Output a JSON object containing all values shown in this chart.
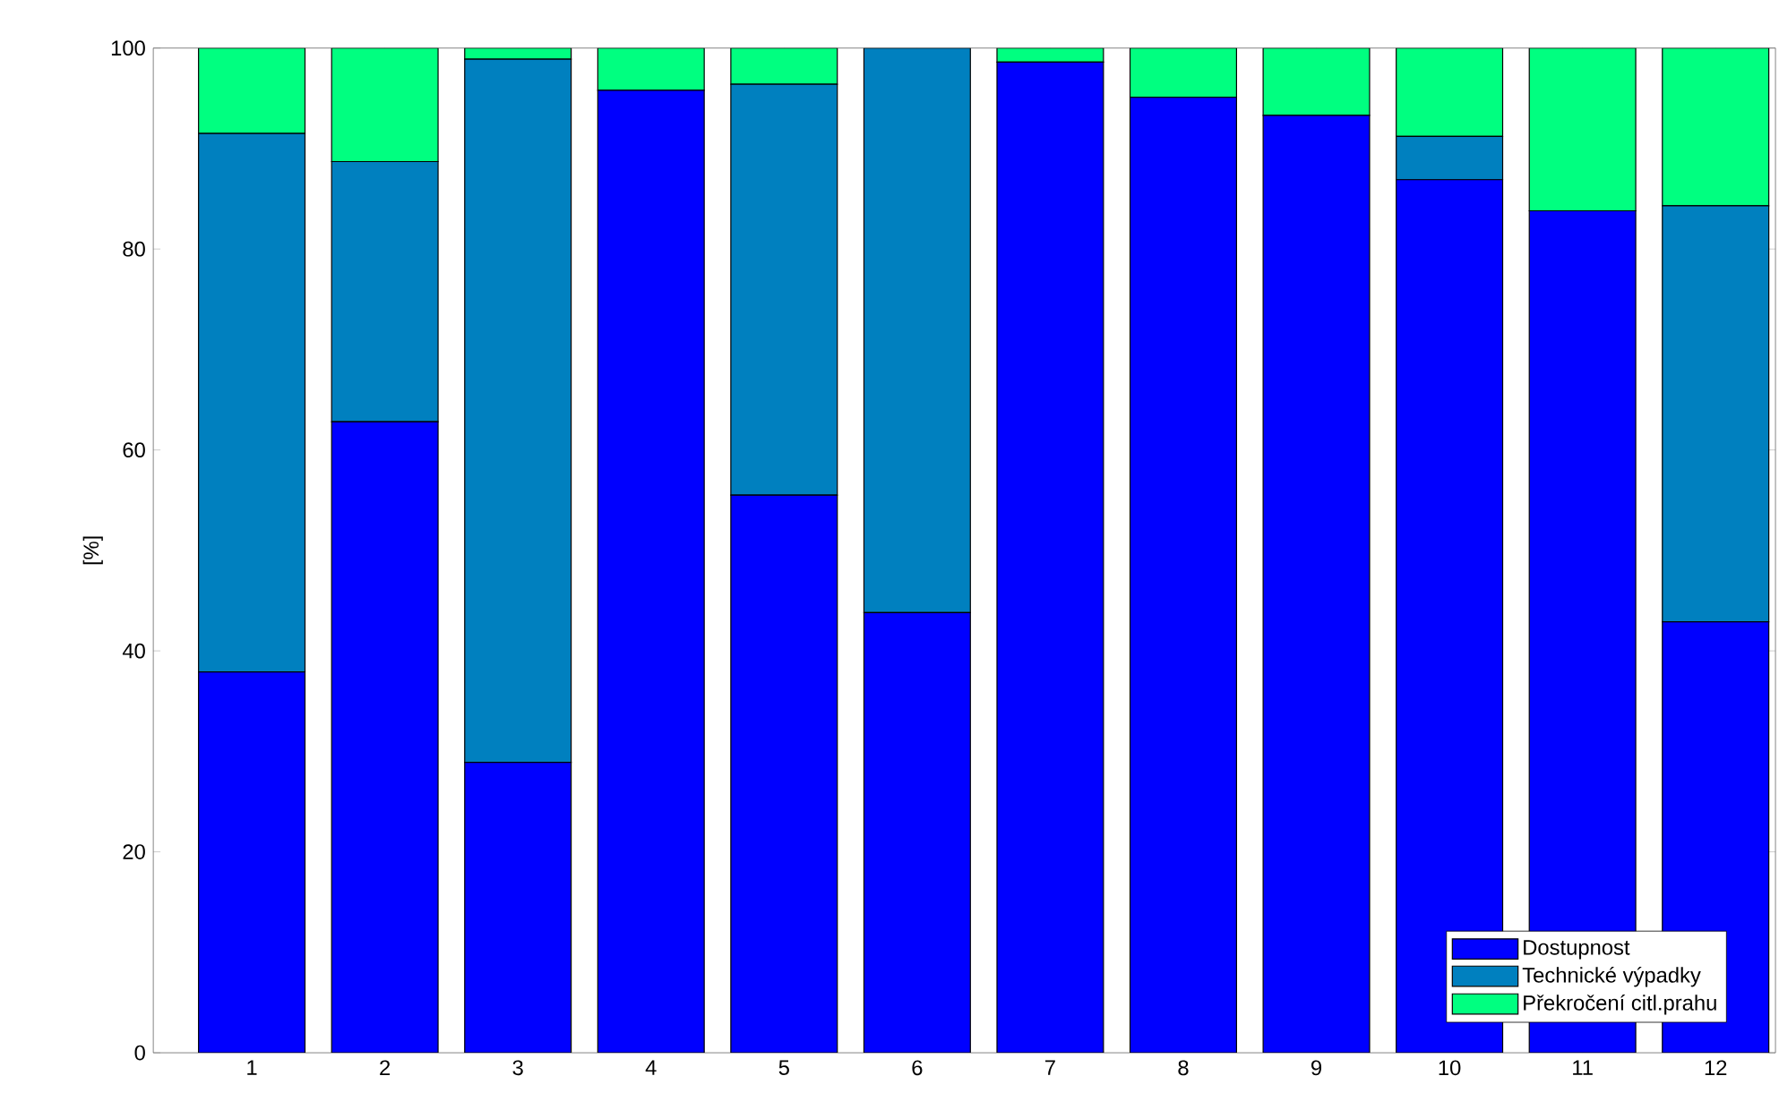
{
  "chart_data": {
    "type": "bar",
    "stacked": true,
    "ylabel": "[%]",
    "categories": [
      "1",
      "2",
      "3",
      "4",
      "5",
      "6",
      "7",
      "8",
      "9",
      "10",
      "11",
      "12"
    ],
    "series": [
      {
        "name": "Dostupnost",
        "color": "#0000ff",
        "values": [
          37.9,
          62.8,
          28.9,
          95.8,
          55.5,
          43.8,
          98.6,
          95.1,
          93.3,
          86.9,
          83.8,
          42.9
        ]
      },
      {
        "name": "Technické výpadky",
        "color": "#0080bf",
        "values": [
          53.6,
          25.9,
          70.0,
          0,
          40.9,
          56.2,
          0,
          0,
          0,
          4.3,
          0,
          41.4
        ]
      },
      {
        "name": "Překročení citl.prahu",
        "color": "#00ff80",
        "values": [
          8.5,
          11.3,
          1.1,
          4.2,
          3.6,
          0,
          1.4,
          4.9,
          6.7,
          8.8,
          16.2,
          15.7
        ]
      }
    ],
    "ylim": [
      0,
      100
    ],
    "yticks": [
      0,
      20,
      40,
      60,
      80,
      100
    ],
    "legend": "bottom right"
  }
}
